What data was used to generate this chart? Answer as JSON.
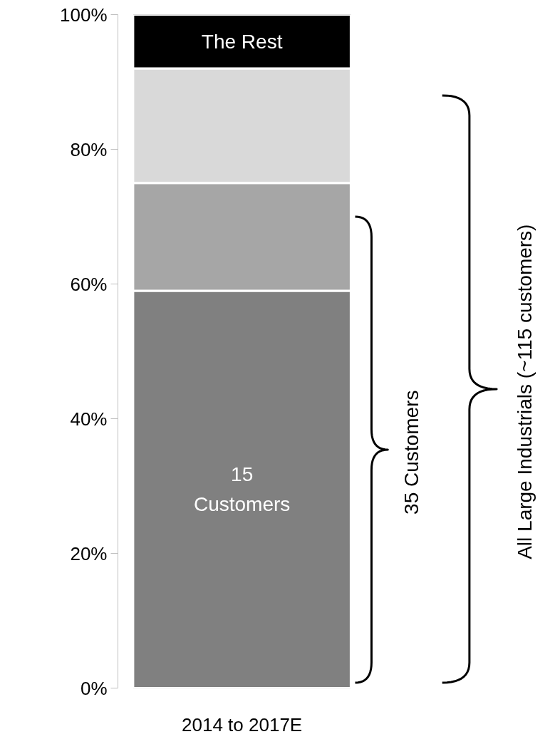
{
  "chart_data": {
    "type": "bar",
    "stacked": true,
    "categories": [
      "2014 to 2017E"
    ],
    "series": [
      {
        "name": "15 Customers",
        "color": "#808080",
        "values": [
          59
        ]
      },
      {
        "color": "#a6a6a6",
        "values": [
          16
        ]
      },
      {
        "color": "#d9d9d9",
        "values": [
          17
        ]
      },
      {
        "name": "The Rest",
        "color": "#000000",
        "values": [
          8
        ]
      }
    ],
    "ylim": [
      0,
      100
    ],
    "yticks": [
      {
        "value": 0,
        "label": "0%"
      },
      {
        "value": 20,
        "label": "20%"
      },
      {
        "value": 40,
        "label": "40%"
      },
      {
        "value": 60,
        "label": "60%"
      },
      {
        "value": 80,
        "label": "80%"
      },
      {
        "value": 100,
        "label": "100%"
      }
    ],
    "annotations": [
      "35 Customers",
      "All Large Industrials (~115 customers)"
    ],
    "grid": false
  }
}
